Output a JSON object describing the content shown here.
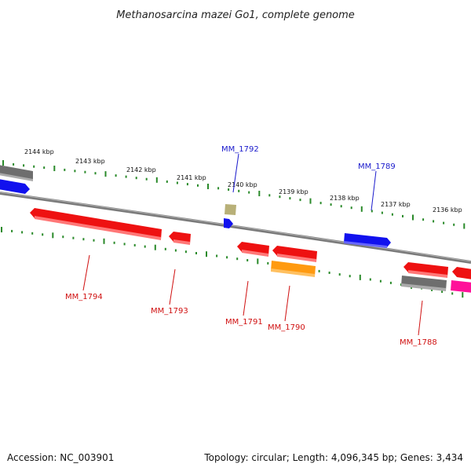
{
  "title": "Methanosarcina mazei Go1, complete genome",
  "footer": {
    "accession": "Accession: NC_003901",
    "summary": "Topology: circular; Length: 4,096,345 bp; Genes: 3,434"
  },
  "colors": {
    "backbone": "#8a8a8a",
    "tick": "#2a8a2a",
    "forward_label": "#1a1acc",
    "reverse_label": "#d01010",
    "red": "#ee1111",
    "blue": "#1111ee",
    "grey": "#707070",
    "orange": "#ff9a10",
    "magenta": "#ff1199",
    "khaki": "#b8b078"
  },
  "kbp_labels": [
    "2144 kbp",
    "2143 kbp",
    "2142 kbp",
    "2141 kbp",
    "2140 kbp",
    "2139 kbp",
    "2138 kbp",
    "2137 kbp",
    "2136 kbp"
  ],
  "gene_labels": [
    {
      "text": "MM_1792",
      "strand": "forward"
    },
    {
      "text": "MM_1789",
      "strand": "forward"
    },
    {
      "text": "MM_1794",
      "strand": "reverse"
    },
    {
      "text": "MM_1793",
      "strand": "reverse"
    },
    {
      "text": "MM_1791",
      "strand": "reverse"
    },
    {
      "text": "MM_1790",
      "strand": "reverse"
    },
    {
      "text": "MM_1788",
      "strand": "reverse"
    }
  ]
}
